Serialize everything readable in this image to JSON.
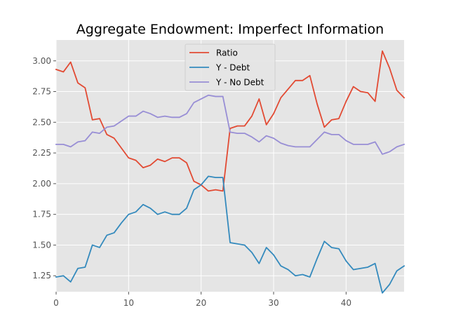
{
  "chart_data": {
    "type": "line",
    "title": "Aggregate Endowment: Imperfect Information",
    "xlabel": "",
    "ylabel": "",
    "xlim": [
      0,
      48
    ],
    "ylim": [
      1.12,
      3.17
    ],
    "grid": true,
    "legend_position": "top-center",
    "x_ticks": [
      "0",
      "10",
      "20",
      "30",
      "40"
    ],
    "x_tick_values": [
      0,
      10,
      20,
      30,
      40
    ],
    "y_ticks": [
      "1.25",
      "1.50",
      "1.75",
      "2.00",
      "2.25",
      "2.50",
      "2.75",
      "3.00"
    ],
    "y_tick_values": [
      1.25,
      1.5,
      1.75,
      2.0,
      2.25,
      2.5,
      2.75,
      3.0
    ],
    "x": [
      0,
      1,
      2,
      3,
      4,
      5,
      6,
      7,
      8,
      9,
      10,
      11,
      12,
      13,
      14,
      15,
      16,
      17,
      18,
      19,
      20,
      21,
      22,
      23,
      24,
      25,
      26,
      27,
      28,
      29,
      30,
      31,
      32,
      33,
      34,
      35,
      36,
      37,
      38,
      39,
      40,
      41,
      42,
      43,
      44,
      45,
      46,
      47,
      48
    ],
    "series": [
      {
        "name": "Ratio",
        "color": "#E24A33",
        "values": [
          2.93,
          2.91,
          2.99,
          2.82,
          2.78,
          2.52,
          2.53,
          2.4,
          2.37,
          2.29,
          2.21,
          2.19,
          2.13,
          2.15,
          2.2,
          2.18,
          2.21,
          2.21,
          2.17,
          2.02,
          1.99,
          1.94,
          1.95,
          1.94,
          2.45,
          2.47,
          2.47,
          2.55,
          2.69,
          2.48,
          2.57,
          2.7,
          2.77,
          2.84,
          2.84,
          2.88,
          2.65,
          2.46,
          2.52,
          2.53,
          2.67,
          2.79,
          2.75,
          2.74,
          2.67,
          3.08,
          2.94,
          2.76,
          2.7
        ]
      },
      {
        "name": "Y - Debt",
        "color": "#348ABD",
        "values": [
          1.24,
          1.25,
          1.2,
          1.31,
          1.32,
          1.5,
          1.48,
          1.58,
          1.6,
          1.68,
          1.75,
          1.77,
          1.83,
          1.8,
          1.75,
          1.77,
          1.75,
          1.75,
          1.8,
          1.95,
          1.99,
          2.06,
          2.05,
          2.05,
          1.52,
          1.51,
          1.5,
          1.44,
          1.35,
          1.48,
          1.42,
          1.33,
          1.3,
          1.25,
          1.26,
          1.24,
          1.39,
          1.53,
          1.48,
          1.47,
          1.37,
          1.3,
          1.31,
          1.32,
          1.35,
          1.11,
          1.18,
          1.29,
          1.33
        ]
      },
      {
        "name": "Y - No Debt",
        "color": "#988ED5",
        "values": [
          2.32,
          2.32,
          2.3,
          2.34,
          2.35,
          2.42,
          2.41,
          2.46,
          2.47,
          2.51,
          2.55,
          2.55,
          2.59,
          2.57,
          2.54,
          2.55,
          2.54,
          2.54,
          2.57,
          2.66,
          2.69,
          2.72,
          2.71,
          2.71,
          2.42,
          2.41,
          2.41,
          2.38,
          2.34,
          2.39,
          2.37,
          2.33,
          2.31,
          2.3,
          2.3,
          2.3,
          2.36,
          2.42,
          2.4,
          2.4,
          2.35,
          2.32,
          2.32,
          2.32,
          2.34,
          2.24,
          2.26,
          2.3,
          2.32
        ]
      }
    ]
  }
}
